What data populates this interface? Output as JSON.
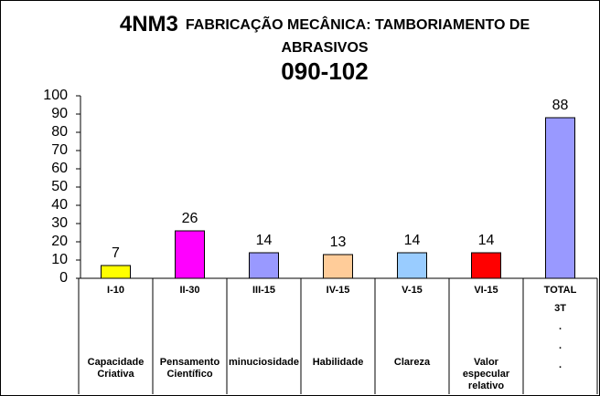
{
  "chart_data": {
    "type": "bar",
    "title": "4NM3",
    "subtitle": [
      "FABRICAÇÃO MECÂNICA: TAMBORIAMENTO DE",
      "ABRASIVOS"
    ],
    "code": "090-102",
    "categories": [
      "I-10",
      "II-30",
      "III-15",
      "IV-15",
      "V-15",
      "VI-15",
      "TOTAL"
    ],
    "sublabels": [
      null,
      null,
      null,
      null,
      null,
      null,
      "3T"
    ],
    "descriptions": [
      [
        "Capacidade",
        "Criativa"
      ],
      [
        "Pensamento",
        "Científico"
      ],
      [
        "minuciosidade"
      ],
      [
        "Habilidade"
      ],
      [
        "Clareza"
      ],
      [
        "Valor",
        "especular",
        "relativo"
      ],
      [
        ".",
        ".",
        "."
      ]
    ],
    "values": [
      7,
      26,
      14,
      13,
      14,
      14,
      88
    ],
    "colors": [
      "#ffff00",
      "#ff00ff",
      "#9999ff",
      "#ffcc99",
      "#99ccff",
      "#ff0000",
      "#9999ff"
    ],
    "ylim": [
      0,
      100
    ],
    "yticks": [
      0,
      10,
      20,
      30,
      40,
      50,
      60,
      70,
      80,
      90,
      100
    ],
    "grid": false
  }
}
